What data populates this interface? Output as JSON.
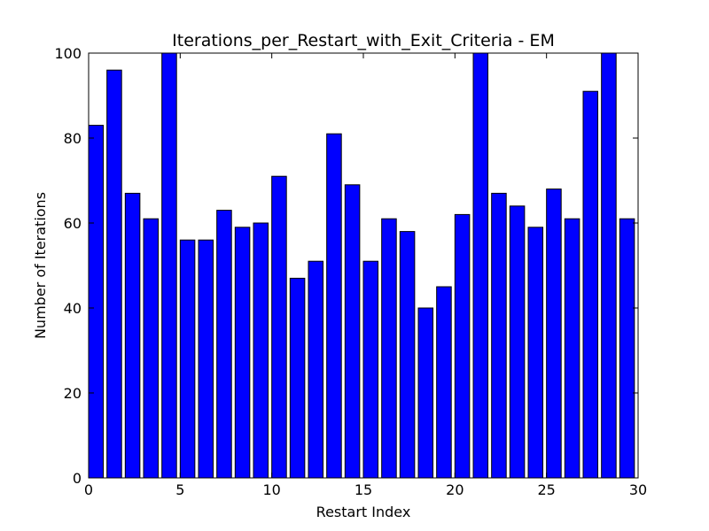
{
  "chart_data": {
    "type": "bar",
    "title": "Iterations_per_Restart_with_Exit_Criteria - EM",
    "xlabel": "Restart Index",
    "ylabel": "Number of Iterations",
    "xlim": [
      0,
      30
    ],
    "ylim": [
      0,
      100
    ],
    "xticks": [
      0,
      5,
      10,
      15,
      20,
      25,
      30
    ],
    "yticks": [
      0,
      20,
      40,
      60,
      80,
      100
    ],
    "grid": false,
    "bar_color": "#0000ff",
    "edge_color": "#000000",
    "categories": [
      0,
      1,
      2,
      3,
      4,
      5,
      6,
      7,
      8,
      9,
      10,
      11,
      12,
      13,
      14,
      15,
      16,
      17,
      18,
      19,
      20,
      21,
      22,
      23,
      24,
      25,
      26,
      27,
      28,
      29
    ],
    "values": [
      83,
      96,
      67,
      61,
      100,
      56,
      56,
      63,
      59,
      60,
      71,
      47,
      51,
      81,
      69,
      51,
      61,
      58,
      40,
      45,
      62,
      100,
      67,
      64,
      59,
      68,
      61,
      91,
      100,
      61
    ]
  }
}
